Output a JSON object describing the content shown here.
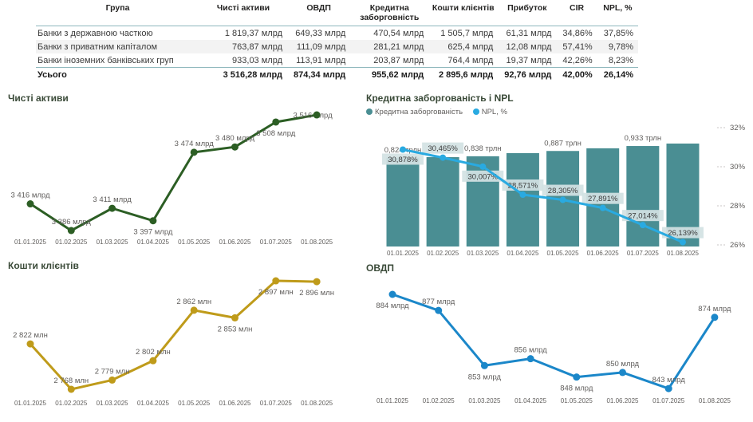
{
  "table": {
    "columns": [
      "Група",
      "Чисті активи",
      "ОВДП",
      "Кредитна заборговність",
      "Кошти клієнтів",
      "Прибуток",
      "CIR",
      "NPL, %"
    ],
    "rows": [
      [
        "Банки з державною часткою",
        "1 819,37 млрд",
        "649,33 млрд",
        "470,54 млрд",
        "1 505,7 млрд",
        "61,31 млрд",
        "34,86%",
        "37,85%"
      ],
      [
        "Банки з приватним капіталом",
        "763,87 млрд",
        "111,09 млрд",
        "281,21 млрд",
        "625,4 млрд",
        "12,08 млрд",
        "57,41%",
        "9,78%"
      ],
      [
        "Банки іноземних банківських груп",
        "933,03 млрд",
        "113,91 млрд",
        "203,87 млрд",
        "764,4 млрд",
        "19,37 млрд",
        "42,26%",
        "8,23%"
      ]
    ],
    "total": [
      "Усього",
      "3 516,28 млрд",
      "874,34 млрд",
      "955,62 млрд",
      "2 895,6 млрд",
      "92,76 млрд",
      "42,00%",
      "26,14%"
    ]
  },
  "chart_data": [
    {
      "id": "net-assets",
      "type": "line",
      "title": "Чисті активи",
      "color": "#2c5e24",
      "unit": "млрд",
      "x": [
        "01.01.2025",
        "01.02.2025",
        "01.03.2025",
        "01.04.2025",
        "01.05.2025",
        "01.06.2025",
        "01.07.2025",
        "01.08.2025"
      ],
      "values": [
        3416,
        3386,
        3411,
        3397,
        3474,
        3480,
        3508,
        3516
      ],
      "labels": [
        "3 416 млрд",
        "3 386 млрд",
        "3 411 млрд",
        "3 397 млрд",
        "3 474 млрд",
        "3 480 млрд",
        "3 508 млрд",
        "3 516 млрд"
      ],
      "label_pos": [
        "above",
        "above",
        "above",
        "below",
        "above",
        "above",
        "below",
        "center"
      ]
    },
    {
      "id": "credit-npl",
      "type": "combo",
      "title": "Кредитна заборгованість і NPL",
      "legend": [
        {
          "label": "Кредитна заборгованість",
          "color": "#4a8e93"
        },
        {
          "label": "NPL, %",
          "color": "#29aae1"
        }
      ],
      "x": [
        "01.01.2025",
        "01.02.2025",
        "01.03.2025",
        "01.04.2025",
        "01.05.2025",
        "01.06.2025",
        "01.07.2025",
        "01.08.2025"
      ],
      "bars": {
        "name": "Кредитна заборгованість",
        "color": "#4a8e93",
        "unit": "трлн",
        "values": [
          0.824,
          0.83,
          0.838,
          0.867,
          0.887,
          0.912,
          0.933,
          0.956
        ],
        "labels": [
          "0,824 трлн",
          null,
          "0,838 трлн",
          null,
          "0,887 трлн",
          null,
          "0,933 трлн",
          null
        ]
      },
      "line": {
        "name": "NPL, %",
        "color": "#29aae1",
        "label_bg": "#d3e2e3",
        "values": [
          30.878,
          30.465,
          30.007,
          28.571,
          28.305,
          27.891,
          27.014,
          26.139
        ],
        "labels": [
          "30,878%",
          "30,465%",
          "30,007%",
          "28,571%",
          "28,305%",
          "27,891%",
          "27,014%",
          "26,139%"
        ],
        "label_pos": [
          "below",
          "above",
          "below",
          "above",
          "above",
          "above",
          "above",
          "above"
        ]
      },
      "right_axis": {
        "ticks": [
          "32%",
          "30%",
          "28%",
          "26%"
        ],
        "min": 26,
        "max": 32
      }
    },
    {
      "id": "client-funds",
      "type": "line",
      "title": "Кошти клієнтів",
      "color": "#bf9b1a",
      "unit": "млн",
      "x": [
        "01.01.2025",
        "01.02.2025",
        "01.03.2025",
        "01.04.2025",
        "01.05.2025",
        "01.06.2025",
        "01.07.2025",
        "01.08.2025"
      ],
      "values": [
        2822,
        2768,
        2779,
        2802,
        2862,
        2853,
        2897,
        2896
      ],
      "labels": [
        "2 822 млн",
        "2 768 млн",
        "2 779 млн",
        "2 802 млн",
        "2 862 млн",
        "2 853 млн",
        "2 897 млн",
        "2 896 млн"
      ],
      "label_pos": [
        "above",
        "above",
        "above",
        "above",
        "above",
        "below",
        "below",
        "below"
      ]
    },
    {
      "id": "ovdp",
      "type": "line",
      "title": "ОВДП",
      "color": "#1b87c9",
      "unit": "млрд",
      "x": [
        "01.01.2025",
        "01.02.2025",
        "01.03.2025",
        "01.04.2025",
        "01.05.2025",
        "01.06.2025",
        "01.07.2025",
        "01.08.2025"
      ],
      "values": [
        884,
        877,
        853,
        856,
        848,
        850,
        843,
        874
      ],
      "labels": [
        "884 млрд",
        "877 млрд",
        "853 млрд",
        "856 млрд",
        "848 млрд",
        "850 млрд",
        "843 млрд",
        "874 млрд"
      ],
      "label_pos": [
        "below",
        "above",
        "below",
        "above",
        "below",
        "above",
        "above",
        "above"
      ]
    }
  ],
  "colors": {
    "row_alt": "#f3f3f3",
    "divider": "#8fb8bd",
    "label_gray": "#605e5c",
    "title_green": "#3a4a38",
    "text": "#3b3b3b"
  }
}
